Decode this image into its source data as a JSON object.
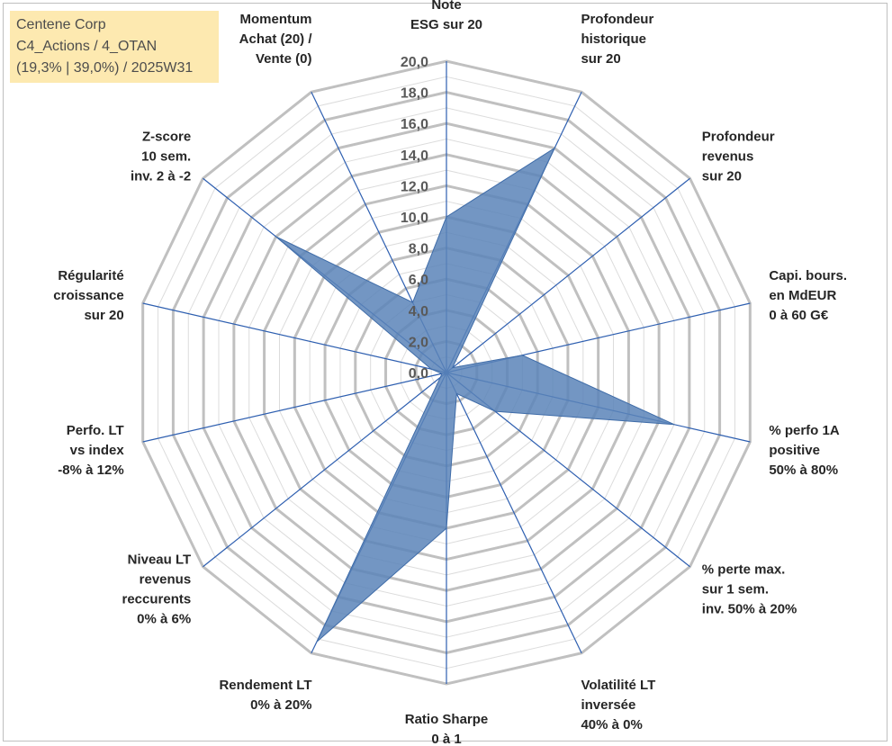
{
  "header": {
    "line1": "Centene Corp",
    "line2": "C4_Actions / 4_OTAN",
    "line3": "(19,3% | 39,0%) / 2025W31"
  },
  "chart_data": {
    "type": "radar",
    "rmin": 0,
    "rmax": 20,
    "tick_labels": [
      "0,0",
      "2,0",
      "4,0",
      "6,0",
      "8,0",
      "10,0",
      "12,0",
      "14,0",
      "16,0",
      "18,0",
      "20,0"
    ],
    "colors": {
      "fill": "#5b84b8",
      "stroke": "#3f6ca8",
      "axis": "#2e5fb0",
      "grid_major": "#c0c0c0",
      "grid_minor": "#dcdcdc"
    },
    "axes": [
      {
        "label": [
          "Note",
          "ESG sur 20"
        ],
        "value": 10.0
      },
      {
        "label": [
          "Profondeur",
          "historique",
          "sur 20"
        ],
        "value": 16.0
      },
      {
        "label": [
          "Profondeur",
          "revenus",
          "sur 20"
        ],
        "value": 0.5
      },
      {
        "label": [
          "Capi. bours.",
          "en MdEUR",
          "0 à 60 G€"
        ],
        "value": 5.0
      },
      {
        "label": [
          "% perfo 1A",
          "positive",
          "50% à 80%"
        ],
        "value": 15.0
      },
      {
        "label": [
          "% perte max.",
          "sur 1 sem.",
          "inv. 50% à 20%"
        ],
        "value": 4.0
      },
      {
        "label": [
          "Volatilité LT",
          "inversée",
          "40% à 0%"
        ],
        "value": 1.5
      },
      {
        "label": [
          "Ratio Sharpe",
          "0 à 1"
        ],
        "value": 10.0
      },
      {
        "label": [
          "Rendement LT",
          "0% à 20%"
        ],
        "value": 19.2
      },
      {
        "label": [
          "Niveau LT",
          "revenus",
          "reccurents",
          "0% à 6%"
        ],
        "value": 0.5
      },
      {
        "label": [
          "Perfo. LT",
          "vs index",
          "-8% à 12%"
        ],
        "value": 0.3
      },
      {
        "label": [
          "Régularité",
          "croissance",
          "sur 20"
        ],
        "value": 1.0
      },
      {
        "label": [
          "Z-score",
          "10 sem.",
          "inv. 2 à -2"
        ],
        "value": 14.0
      },
      {
        "label": [
          "Momentum",
          "Achat (20) /",
          "Vente (0)"
        ],
        "value": 5.0
      }
    ]
  }
}
